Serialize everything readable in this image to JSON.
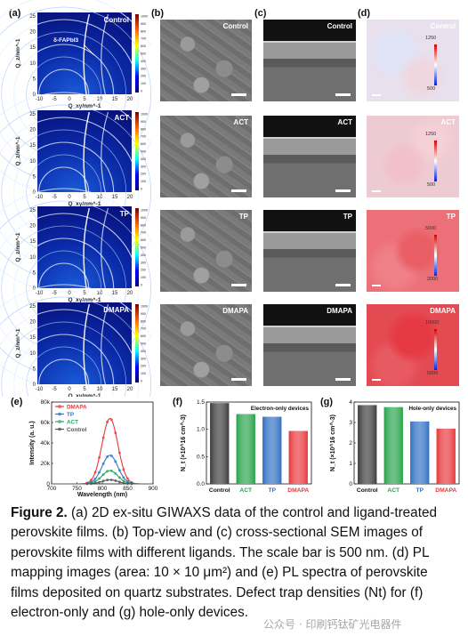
{
  "panels": {
    "a_label": "(a)",
    "b_label": "(b)",
    "c_label": "(c)",
    "d_label": "(d)",
    "e_label": "(e)",
    "f_label": "(f)",
    "g_label": "(g)"
  },
  "giwaxs": {
    "rows": [
      "Control",
      "ACT",
      "TP",
      "DMAPA"
    ],
    "annotation": "δ-FAPbI3",
    "xlabel": "Q_xy/nm^-1",
    "ylabel": "Q_z/nm^-1",
    "xticks": [
      "-10",
      "-5",
      "0",
      "5",
      "10",
      "15",
      "20"
    ],
    "yticks": [
      "25",
      "20",
      "15",
      "10",
      "5",
      "0"
    ],
    "colorbar_ticks": [
      "1000",
      "900",
      "800",
      "700",
      "600",
      "500",
      "400",
      "300",
      "200",
      "100",
      "0"
    ]
  },
  "sem_top": {
    "rows": [
      "Control",
      "ACT",
      "TP",
      "DMAPA"
    ]
  },
  "sem_cross": {
    "rows": [
      "Control",
      "ACT",
      "TP",
      "DMAPA"
    ]
  },
  "pl_map": {
    "rows": [
      {
        "label": "Control",
        "max": "1250",
        "min": "500"
      },
      {
        "label": "ACT",
        "max": "1250",
        "min": "500"
      },
      {
        "label": "TP",
        "max": "5000",
        "min": "2000"
      },
      {
        "label": "DMAPA",
        "max": "10000",
        "min": "5000"
      }
    ]
  },
  "chart_data": [
    {
      "type": "line",
      "panel": "e",
      "xlabel": "Wavelength (nm)",
      "ylabel": "Intensity (a. u.)",
      "xlim": [
        700,
        900
      ],
      "ylim": [
        0,
        80000
      ],
      "xticks": [
        "700",
        "750",
        "800",
        "850",
        "900"
      ],
      "yticks": [
        "0",
        "20k",
        "40k",
        "60k",
        "80k"
      ],
      "peak_x": 815,
      "series": [
        {
          "name": "DMAPA",
          "color": "#e8373b",
          "peak": 64000
        },
        {
          "name": "TP",
          "color": "#2f78c4",
          "peak": 28000
        },
        {
          "name": "ACT",
          "color": "#27a76a",
          "peak": 13000
        },
        {
          "name": "Control",
          "color": "#555555",
          "peak": 4000
        }
      ]
    },
    {
      "type": "bar",
      "panel": "f",
      "title": "Electron-only devices",
      "ylabel": "N_t (×10^16 cm^-3)",
      "ylim": [
        0.0,
        1.5
      ],
      "yticks": [
        "0.0",
        "0.5",
        "1.0",
        "1.5"
      ],
      "categories": [
        "Control",
        "ACT",
        "TP",
        "DMAPA"
      ],
      "values": [
        1.48,
        1.28,
        1.23,
        0.97
      ],
      "colors": [
        "#3a3a3a",
        "#27a24a",
        "#2f6fc4",
        "#e8373b"
      ]
    },
    {
      "type": "bar",
      "panel": "g",
      "title": "Hole-only devices",
      "ylabel": "N_t (×10^16 cm^-3)",
      "ylim": [
        0,
        4
      ],
      "yticks": [
        "0",
        "1",
        "2",
        "3",
        "4"
      ],
      "categories": [
        "Control",
        "ACT",
        "TP",
        "DMAPA"
      ],
      "values": [
        3.85,
        3.75,
        3.05,
        2.7
      ],
      "colors": [
        "#3a3a3a",
        "#27a24a",
        "#2f6fc4",
        "#e8373b"
      ]
    }
  ],
  "caption": {
    "fig": "Figure 2.",
    "text": " (a) 2D ex-situ GIWAXS data of the control and ligand-treated perovskite films. (b) Top-view and (c) cross-sectional SEM images of perovskite films with different ligands. The scale bar is 500 nm. (d) PL mapping images (area: 10 × 10 μm²) and (e) PL spectra of perovskite films deposited on quartz substrates. Defect trap densities (Nt) for (f) electron-only and (g) hole-only devices."
  },
  "watermark": "公众号 · 印刷钙钛矿光电器件"
}
